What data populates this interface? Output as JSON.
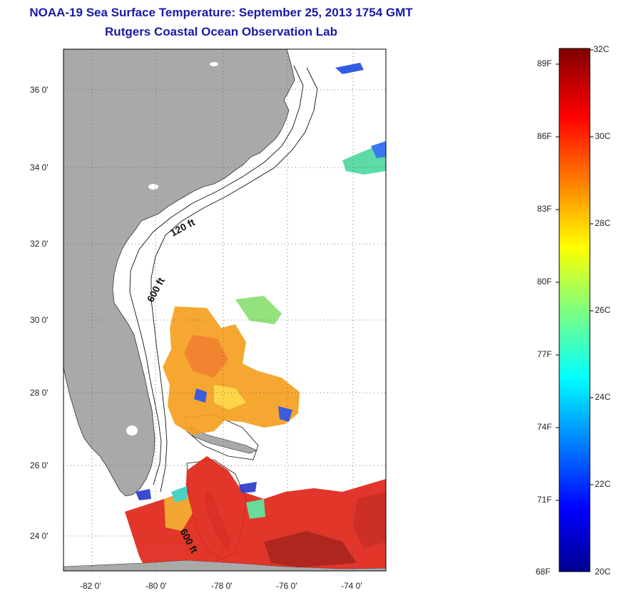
{
  "title": {
    "line1": "NOAA-19 Sea Surface Temperature:  September 25, 2013 1754 GMT",
    "line2": "Rutgers Coastal Ocean Observation Lab"
  },
  "map": {
    "lat_labels": [
      "36 0'",
      "34 0'",
      "32 0'",
      "30 0'",
      "28 0'",
      "26 0'",
      "24 0'"
    ],
    "lon_labels": [
      "-82 0'",
      "-80 0'",
      "-78 0'",
      "-76 0'",
      "-74 0'"
    ],
    "contour_labels": [
      "120 ft",
      "600 ft",
      "600 ft"
    ],
    "colors": {
      "land": "#a9a9a9",
      "ocean": "#ffffff",
      "title": "#1a1aa6"
    }
  },
  "colorbar": {
    "fahrenheit": [
      "89F",
      "86F",
      "83F",
      "80F",
      "77F",
      "74F",
      "71F",
      "68F"
    ],
    "celsius": [
      "32C",
      "30C",
      "28C",
      "26C",
      "24C",
      "22C",
      "20C"
    ],
    "range_c": [
      20,
      32
    ]
  }
}
